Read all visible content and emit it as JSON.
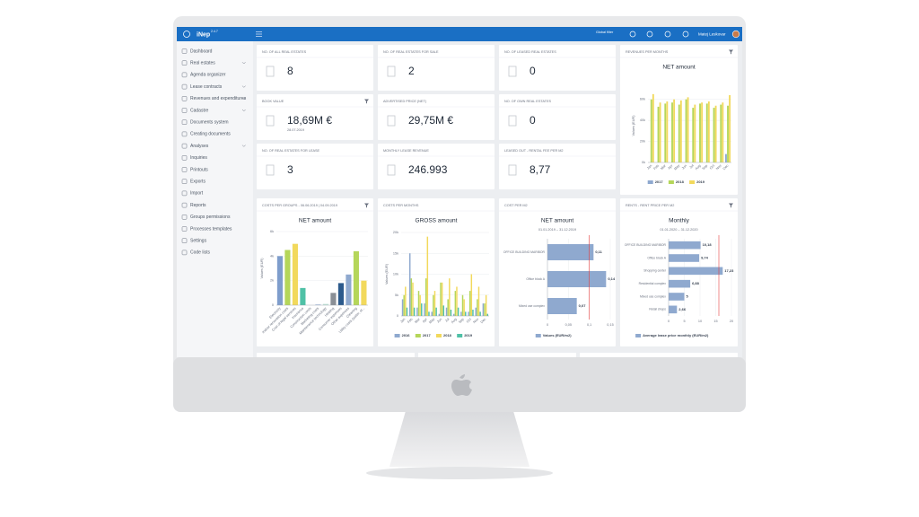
{
  "app": {
    "logo": "iNep",
    "version": "2.4.7",
    "global_filter": "Global filter",
    "user": "Matej Leskovar"
  },
  "sidebar": [
    {
      "label": "Dashboard"
    },
    {
      "label": "Real estates",
      "submenu": true
    },
    {
      "label": "Agenda organizer"
    },
    {
      "label": "Lease contracts",
      "submenu": true
    },
    {
      "label": "Revenues and expenditures",
      "submenu": true
    },
    {
      "label": "Cadastre",
      "submenu": true
    },
    {
      "label": "Documents system"
    },
    {
      "label": "Creating documents"
    },
    {
      "label": "Analyses",
      "submenu": true
    },
    {
      "label": "Inquiries"
    },
    {
      "label": "Printouts"
    },
    {
      "label": "Exports"
    },
    {
      "label": "Import"
    },
    {
      "label": "Reports"
    },
    {
      "label": "Groups permissions"
    },
    {
      "label": "Processes templates"
    },
    {
      "label": "Settings"
    },
    {
      "label": "Code lists"
    }
  ],
  "kpis": [
    {
      "title": "NO. OF ALL REAL ESTATES",
      "value": "8"
    },
    {
      "title": "NO. OF REAL ESTATES FOR SALE",
      "value": "2"
    },
    {
      "title": "NO. OF LEASED REAL ESTATES",
      "value": "0"
    },
    {
      "title": "BOOK VALUE",
      "value": "18,69M €",
      "date": "28.07.2019",
      "filter": true
    },
    {
      "title": "ADVERTISED PRICE (NET)",
      "value": "29,75M €"
    },
    {
      "title": "NO. OF OWN REAL ESTATES",
      "value": "0"
    },
    {
      "title": "NO. OF REAL ESTATES FOR LEASE",
      "value": "3"
    },
    {
      "title": "MONTHLY LEASE REVENUE",
      "value": "246.993"
    },
    {
      "title": "LEASED OUT - RENTAL FEE PER M2",
      "value": "8,77"
    }
  ],
  "charts": [
    {
      "type": "bar",
      "panel_title": "REVENUES PER MONTHS",
      "title": "NET amount",
      "filter": true,
      "y_label": "Values (EUR)",
      "categories": [
        "Jan",
        "Feb",
        "Mar",
        "Apr",
        "May",
        "Jun",
        "Jul",
        "Aug",
        "Sep",
        "Oct",
        "Nov",
        "Dec"
      ],
      "series": [
        {
          "name": "2017",
          "color": "#8fa9cf",
          "values": [
            0,
            0,
            0,
            0,
            0,
            0,
            0,
            0,
            0,
            0,
            0,
            8000
          ]
        },
        {
          "name": "2018",
          "color": "#b5d65a",
          "values": [
            60000,
            53000,
            56000,
            57000,
            55000,
            60000,
            52000,
            56000,
            56000,
            52000,
            55000,
            54000
          ]
        },
        {
          "name": "2019",
          "color": "#f2d95c",
          "values": [
            65000,
            57000,
            58000,
            60000,
            59000,
            62000,
            55000,
            57000,
            58000,
            54000,
            57000,
            64000
          ]
        }
      ],
      "ylim": [
        0,
        70000
      ],
      "yticks": [
        {
          "value": 0,
          "label": "0k"
        },
        {
          "value": 20000,
          "label": "20k"
        },
        {
          "value": 40000,
          "label": "40k"
        },
        {
          "value": 60000,
          "label": "60k"
        }
      ]
    },
    {
      "type": "bar",
      "panel_title": "COSTS PER GROUPS - 06.06.2019 | 04.09.2019",
      "title": "NET amount",
      "filter": true,
      "y_label": "Values (EUR)",
      "categories": [
        "Electricity",
        "Indoor renovation costs",
        "Cost of legal services",
        "Insurance",
        "Construction costs",
        "Marketing costs",
        "Maintenance technology",
        "Heating",
        "Consumer expenses",
        "Other expenses",
        "Cleaning",
        "Utility costs (water, el..."
      ],
      "values": [
        4000,
        4500,
        5000,
        1400,
        0,
        50,
        100,
        1000,
        1800,
        2500,
        4400,
        2000
      ],
      "colors": [
        "#7e9dcc",
        "#b5d65a",
        "#f2d95c",
        "#4fc1a6",
        "#c7d9a0",
        "#8fa9cf",
        "#bfe3d6",
        "#8a8f96",
        "#2c5a8c",
        "#8fa9cf",
        "#b5d65a",
        "#f2d95c"
      ],
      "ylim": [
        0,
        6000
      ],
      "yticks": [
        0,
        {
          "value": 2000,
          "label": "2k"
        },
        {
          "value": 4000,
          "label": "4k"
        },
        {
          "value": 6000,
          "label": "6k"
        }
      ]
    },
    {
      "type": "bar",
      "panel_title": "COSTS PER MONTHS",
      "title": "GROSS amount",
      "y_label": "Values (EUR)",
      "categories": [
        "Jan",
        "Feb",
        "Mar",
        "Apr",
        "May",
        "Jun",
        "Jul",
        "Aug",
        "Sep",
        "Oct",
        "Nov",
        "Dec"
      ],
      "series": [
        {
          "name": "2016",
          "color": "#8fa9cf",
          "values": [
            4000,
            15000,
            2000,
            3000,
            1000,
            500,
            2000,
            500,
            1000,
            1000,
            2000,
            3000
          ]
        },
        {
          "name": "2017",
          "color": "#b5d65a",
          "values": [
            5000,
            9000,
            6000,
            9000,
            5000,
            8000,
            4000,
            6000,
            5000,
            6000,
            4000,
            3000
          ]
        },
        {
          "name": "2018",
          "color": "#f2d95c",
          "values": [
            7000,
            8000,
            5000,
            19000,
            6000,
            8000,
            9000,
            7000,
            4000,
            10000,
            7000,
            5000
          ]
        },
        {
          "name": "2019",
          "color": "#4fc1a6",
          "values": [
            2000,
            2000,
            3000,
            1000,
            2000,
            2500,
            1500,
            2000,
            1000,
            1500,
            1000,
            500
          ]
        }
      ],
      "ylim": [
        0,
        20000
      ],
      "yticks": [
        0,
        {
          "value": 5000,
          "label": "5k"
        },
        {
          "value": 10000,
          "label": "10k"
        },
        {
          "value": 15000,
          "label": "15k"
        },
        {
          "value": 20000,
          "label": "20k"
        }
      ]
    },
    {
      "type": "hbar",
      "panel_title": "COST PER M2",
      "title": "NET amount",
      "subtitle": "01.01.2019 – 31.12.2019",
      "categories": [
        "OFFICE BUILDING MARIBOR",
        "Office block A",
        "Mixed use complex"
      ],
      "series": [
        {
          "name": "Values (EUR/m2)",
          "color": "#8fa9cf",
          "values": [
            0.11,
            0.14,
            0.07
          ],
          "value_labels": [
            "0,11",
            "0,14",
            "0,07"
          ]
        }
      ],
      "reference_line": 0.1,
      "xlim": [
        0,
        0.15
      ],
      "xticks": [
        0,
        {
          "value": 0.05,
          "label": "0,05"
        },
        {
          "value": 0.1,
          "label": "0,1"
        },
        {
          "value": 0.15,
          "label": "0,15"
        }
      ]
    },
    {
      "type": "hbar",
      "panel_title": "RENTS - RENT PRICE PER M2",
      "title": "Monthly",
      "subtitle": "01.01.2020 – 31.12.2020",
      "filter": true,
      "categories": [
        "OFFICE BUILDING MARIBOR",
        "Office block A",
        "Shopping center",
        "Residential complex",
        "Mixed use complex",
        "Retail shops"
      ],
      "series": [
        {
          "name": "Average lease price monthly (EUR/m2)",
          "color": "#8fa9cf",
          "values": [
            10.18,
            9.74,
            17.23,
            6.88,
            5,
            2.66
          ],
          "value_labels": [
            "10,18",
            "9,74",
            "17,23",
            "6,88",
            "5",
            "2,66"
          ]
        }
      ],
      "reference_line": 16,
      "xlim": [
        0,
        20
      ],
      "xticks": [
        0,
        5,
        10,
        15,
        20
      ]
    }
  ]
}
